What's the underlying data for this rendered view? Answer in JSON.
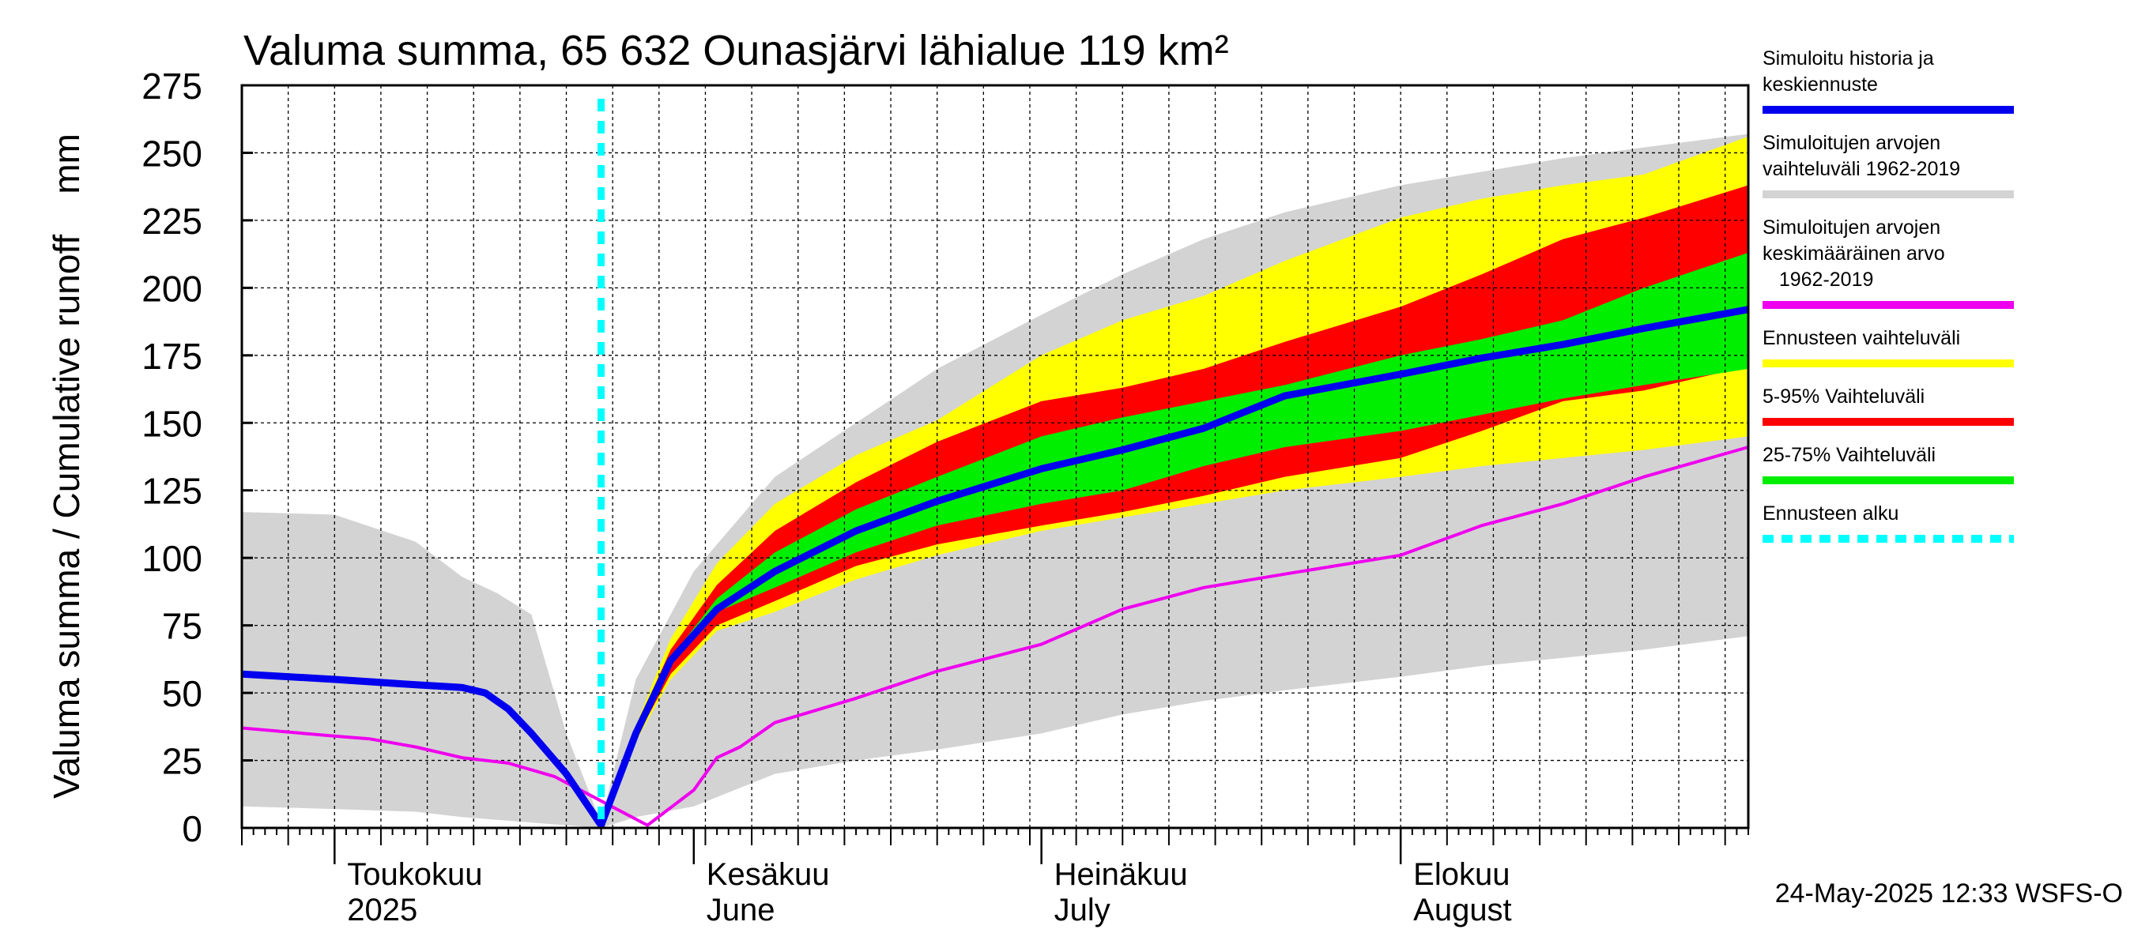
{
  "chart_data": {
    "type": "area",
    "title": "Valuma summa, 65 632 Ounasjärvi lähialue 119 km²",
    "ylabel": "Valuma summa / Cumulative runoff    mm",
    "ylim": [
      0,
      275
    ],
    "yticks": [
      0,
      25,
      50,
      75,
      100,
      125,
      150,
      175,
      200,
      225,
      250,
      275
    ],
    "xlim": [
      "2025-04-23",
      "2025-08-31"
    ],
    "grid": true,
    "legend_position": "right",
    "month_labels": [
      {
        "line1": "Toukokuu",
        "line2": "2025",
        "date": "2025-05-01"
      },
      {
        "line1": "Kesäkuu",
        "line2": "June",
        "date": "2025-06-01"
      },
      {
        "line1": "Heinäkuu",
        "line2": "July",
        "date": "2025-07-01"
      },
      {
        "line1": "Elokuu",
        "line2": "August",
        "date": "2025-08-01"
      }
    ],
    "forecast_start": "2025-05-24",
    "timestamp": "24-May-2025 12:33 WSFS-O",
    "legend": [
      {
        "label": "Simuloitu historia ja\nkeskiennuste",
        "color": "#0000ee",
        "style": "line"
      },
      {
        "label": "Simuloitujen arvojen\nvaihteluväli 1962-2019",
        "color": "#d3d3d3",
        "style": "line"
      },
      {
        "label": "Simuloitujen arvojen\nkeskimääräinen arvo\n   1962-2019",
        "color": "#ee00ee",
        "style": "line"
      },
      {
        "label": "Ennusteen vaihteluväli",
        "color": "#ffff00",
        "style": "line"
      },
      {
        "label": "5-95% Vaihteluväli",
        "color": "#ff0000",
        "style": "line"
      },
      {
        "label": "25-75% Vaihteluväli",
        "color": "#00ee00",
        "style": "line"
      },
      {
        "label": "Ennusteen alku",
        "color": "#00ffff",
        "style": "dashed"
      }
    ],
    "series": [
      {
        "name": "Simuloitujen arvojen vaihteluväli 1962-2019",
        "kind": "band",
        "color": "#d3d3d3",
        "x": [
          "2025-04-23",
          "2025-05-01",
          "2025-05-08",
          "2025-05-12",
          "2025-05-15",
          "2025-05-18",
          "2025-05-21",
          "2025-05-24",
          "2025-05-27",
          "2025-06-01",
          "2025-06-08",
          "2025-06-15",
          "2025-06-22",
          "2025-07-01",
          "2025-07-08",
          "2025-07-15",
          "2025-07-22",
          "2025-08-01",
          "2025-08-08",
          "2025-08-15",
          "2025-08-22",
          "2025-08-31"
        ],
        "lower": [
          8,
          7,
          6,
          4,
          3,
          2,
          1,
          0,
          4,
          8,
          20,
          25,
          29,
          35,
          42,
          47,
          51,
          56,
          60,
          63,
          66,
          71
        ],
        "upper": [
          117,
          116,
          106,
          93,
          87,
          79,
          35,
          2,
          55,
          95,
          130,
          150,
          170,
          190,
          205,
          218,
          228,
          238,
          243,
          248,
          252,
          257
        ]
      },
      {
        "name": "Ennusteen vaihteluväli",
        "kind": "band",
        "color": "#ffff00",
        "x": [
          "2025-05-24",
          "2025-05-27",
          "2025-05-30",
          "2025-06-03",
          "2025-06-08",
          "2025-06-15",
          "2025-06-22",
          "2025-07-01",
          "2025-07-08",
          "2025-07-15",
          "2025-07-22",
          "2025-08-01",
          "2025-08-08",
          "2025-08-15",
          "2025-08-22",
          "2025-08-31"
        ],
        "lower": [
          1,
          32,
          55,
          73,
          80,
          92,
          101,
          110,
          115,
          120,
          125,
          130,
          134,
          137,
          140,
          145
        ],
        "upper": [
          1,
          38,
          70,
          98,
          120,
          138,
          151,
          175,
          188,
          197,
          210,
          226,
          233,
          238,
          242,
          256
        ]
      },
      {
        "name": "5-95% Vaihteluväli",
        "kind": "band",
        "color": "#ff0000",
        "x": [
          "2025-05-24",
          "2025-05-27",
          "2025-05-30",
          "2025-06-03",
          "2025-06-08",
          "2025-06-15",
          "2025-06-22",
          "2025-07-01",
          "2025-07-08",
          "2025-07-15",
          "2025-07-22",
          "2025-08-01",
          "2025-08-08",
          "2025-08-15",
          "2025-08-22",
          "2025-08-31"
        ],
        "lower": [
          1,
          33,
          57,
          75,
          84,
          97,
          105,
          112,
          117,
          123,
          130,
          137,
          147,
          158,
          162,
          171
        ],
        "upper": [
          1,
          37,
          66,
          90,
          110,
          128,
          143,
          158,
          163,
          170,
          180,
          193,
          205,
          218,
          226,
          238
        ]
      },
      {
        "name": "25-75% Vaihteluväli",
        "kind": "band",
        "color": "#00ee00",
        "x": [
          "2025-05-24",
          "2025-05-27",
          "2025-05-30",
          "2025-06-03",
          "2025-06-08",
          "2025-06-15",
          "2025-06-22",
          "2025-07-01",
          "2025-07-08",
          "2025-07-15",
          "2025-07-22",
          "2025-08-01",
          "2025-08-08",
          "2025-08-15",
          "2025-08-22",
          "2025-08-31"
        ],
        "lower": [
          1,
          34,
          60,
          80,
          89,
          102,
          112,
          120,
          125,
          134,
          141,
          147,
          153,
          159,
          164,
          170
        ],
        "upper": [
          1,
          36,
          63,
          85,
          102,
          118,
          130,
          145,
          152,
          158,
          164,
          175,
          181,
          188,
          200,
          213
        ]
      },
      {
        "name": "Simuloitujen arvojen keskimääräinen arvo 1962-2019",
        "kind": "line",
        "color": "#ee00ee",
        "x": [
          "2025-04-23",
          "2025-05-01",
          "2025-05-04",
          "2025-05-08",
          "2025-05-12",
          "2025-05-16",
          "2025-05-20",
          "2025-05-24",
          "2025-05-28",
          "2025-06-01",
          "2025-06-03",
          "2025-06-05",
          "2025-06-08",
          "2025-06-15",
          "2025-06-22",
          "2025-07-01",
          "2025-07-08",
          "2025-07-15",
          "2025-07-22",
          "2025-08-01",
          "2025-08-08",
          "2025-08-15",
          "2025-08-22",
          "2025-08-31"
        ],
        "values": [
          37,
          34,
          33,
          30,
          26,
          24,
          19,
          10,
          1,
          14,
          26,
          30,
          39,
          48,
          58,
          68,
          81,
          89,
          94,
          101,
          112,
          120,
          130,
          141
        ]
      },
      {
        "name": "Simuloitu historia ja keskiennuste",
        "kind": "line",
        "color": "#0000ee",
        "x": [
          "2025-04-23",
          "2025-05-01",
          "2025-05-08",
          "2025-05-12",
          "2025-05-14",
          "2025-05-16",
          "2025-05-18",
          "2025-05-21",
          "2025-05-24",
          "2025-05-27",
          "2025-05-30",
          "2025-06-03",
          "2025-06-08",
          "2025-06-15",
          "2025-06-22",
          "2025-07-01",
          "2025-07-08",
          "2025-07-15",
          "2025-07-22",
          "2025-08-01",
          "2025-08-08",
          "2025-08-15",
          "2025-08-22",
          "2025-08-31"
        ],
        "values": [
          57,
          55,
          53,
          52,
          50,
          44,
          35,
          20,
          1,
          35,
          62,
          81,
          95,
          110,
          121,
          133,
          140,
          148,
          160,
          168,
          174,
          179,
          185,
          192
        ]
      }
    ]
  }
}
